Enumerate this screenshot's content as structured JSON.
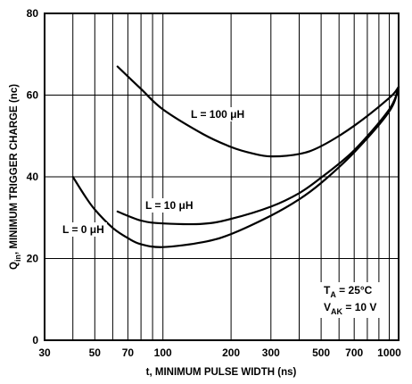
{
  "chart_data": {
    "type": "line",
    "x_scale": "log",
    "xlim": [
      30,
      1100
    ],
    "ylim": [
      0,
      80
    ],
    "grid": true,
    "xlabel": "t, MINIMUM PULSE WIDTH (ns)",
    "ylabel": {
      "prefix": "Q",
      "subscript": "in",
      "suffix": ", MINIMUM TRIGGER CHARGE (nc)"
    },
    "x_ticks": [
      {
        "value": 30,
        "label": "30"
      },
      {
        "value": 50,
        "label": "50"
      },
      {
        "value": 70,
        "label": "70"
      },
      {
        "value": 100,
        "label": "100"
      },
      {
        "value": 200,
        "label": "200"
      },
      {
        "value": 300,
        "label": "300"
      },
      {
        "value": 500,
        "label": "500"
      },
      {
        "value": 700,
        "label": "700"
      },
      {
        "value": 1000,
        "label": "1000"
      }
    ],
    "x_grid": [
      30,
      40,
      50,
      60,
      70,
      80,
      90,
      100,
      200,
      300,
      400,
      500,
      600,
      700,
      800,
      900,
      1000
    ],
    "y_ticks": [
      {
        "value": 0,
        "label": "0"
      },
      {
        "value": 20,
        "label": "20"
      },
      {
        "value": 40,
        "label": "40"
      },
      {
        "value": 60,
        "label": "60"
      },
      {
        "value": 80,
        "label": "80"
      }
    ],
    "series": [
      {
        "name": "L = 100 μH",
        "x": [
          63,
          80,
          100,
          150,
          200,
          250,
          300,
          400,
          500,
          700,
          1000,
          1100
        ],
        "y": [
          67,
          61.5,
          56.5,
          50.5,
          47.3,
          45.7,
          45,
          45.6,
          47.5,
          52.5,
          59.3,
          62
        ]
      },
      {
        "name": "L = 10 μH",
        "x": [
          63,
          80,
          100,
          150,
          200,
          300,
          400,
          500,
          700,
          1000,
          1100
        ],
        "y": [
          31.5,
          29.3,
          28.6,
          28.5,
          29.7,
          32.7,
          36,
          39.8,
          46.5,
          56.5,
          62
        ]
      },
      {
        "name": "L = 0 μH",
        "x": [
          40,
          45,
          50,
          60,
          70,
          80,
          100,
          150,
          200,
          300,
          400,
          500,
          700,
          1000,
          1100
        ],
        "y": [
          40,
          35.5,
          32,
          27.5,
          25,
          23.5,
          22.8,
          24,
          26,
          30.5,
          34.5,
          38.5,
          46,
          56,
          62
        ]
      }
    ],
    "annotations": {
      "series_labels": [
        {
          "text": "L = 100 μH",
          "series": 0
        },
        {
          "text": "L = 10 μH",
          "series": 1
        },
        {
          "text": "L = 0 μH",
          "series": 2
        }
      ],
      "conditions": [
        {
          "main": "T",
          "sub": "A",
          "rest": " = 25°C"
        },
        {
          "main": "V",
          "sub": "AK",
          "rest": " = 10 V"
        }
      ]
    }
  }
}
